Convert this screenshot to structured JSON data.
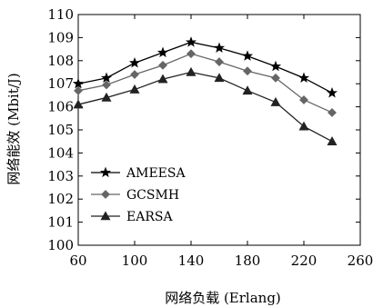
{
  "chart_data": {
    "type": "line",
    "xlabel": "网络负载 (Erlang)",
    "ylabel": "网络能效 (Mbit/J)",
    "xlim": [
      60,
      260
    ],
    "ylim": [
      100,
      110
    ],
    "xticks": [
      60,
      100,
      140,
      180,
      220,
      260
    ],
    "yticks": [
      100,
      101,
      102,
      103,
      104,
      105,
      106,
      107,
      108,
      109,
      110
    ],
    "grid": false,
    "legend_position": "lower-left",
    "x": [
      60,
      80,
      100,
      120,
      140,
      160,
      180,
      200,
      220,
      240
    ],
    "series": [
      {
        "name": "AMEESA",
        "marker": "star",
        "color": "#000000",
        "values": [
          107.0,
          107.25,
          107.9,
          108.35,
          108.8,
          108.55,
          108.2,
          107.75,
          107.25,
          106.6
        ]
      },
      {
        "name": "GCSMH",
        "marker": "diamond",
        "color": "#666666",
        "values": [
          106.7,
          106.95,
          107.4,
          107.8,
          108.3,
          107.95,
          107.55,
          107.25,
          106.3,
          105.75
        ]
      },
      {
        "name": "EARSA",
        "marker": "triangle",
        "color": "#222222",
        "values": [
          106.1,
          106.4,
          106.75,
          107.2,
          107.5,
          107.25,
          106.7,
          106.2,
          105.15,
          104.5
        ]
      }
    ]
  }
}
